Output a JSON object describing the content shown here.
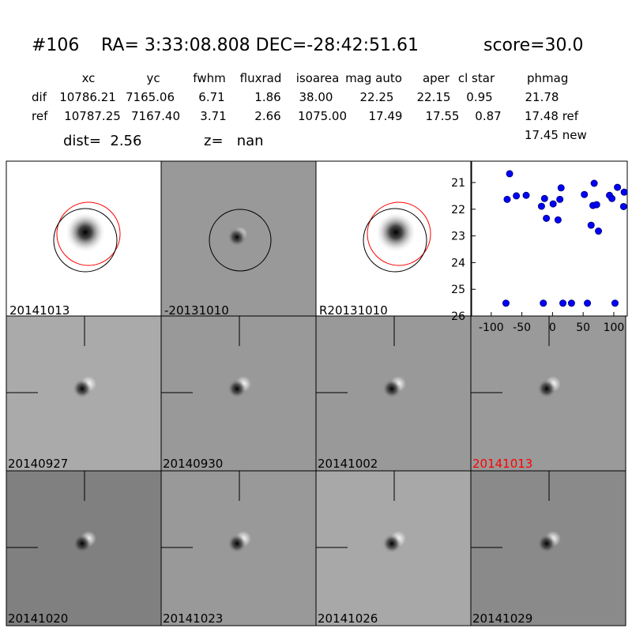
{
  "header": {
    "id": "#106",
    "coords": "RA= 3:33:08.808 DEC=-28:42:51.61",
    "score": "score=30.0"
  },
  "table": {
    "columns": [
      "xc",
      "yc",
      "fwhm",
      "fluxrad",
      "isoarea",
      "mag auto",
      "aper",
      "cl star",
      "phmag"
    ],
    "rows": [
      {
        "label": "dif",
        "values": [
          "10786.21",
          "7165.06",
          "6.71",
          "1.86",
          "38.00",
          "22.25",
          "22.15",
          "0.95",
          "21.78"
        ]
      },
      {
        "label": "ref",
        "values": [
          "10787.25",
          "7167.40",
          "3.71",
          "2.66",
          "1075.00",
          "17.49",
          "17.55",
          "0.87",
          "17.48 ref"
        ]
      }
    ],
    "extra": "17.45 new"
  },
  "dist": "dist=  2.56",
  "z": "z=   nan",
  "panels": [
    "20141013",
    "-20131010",
    "R20131010",
    "20140927",
    "20140930",
    "20141002",
    "20141013",
    "20141020",
    "20141023",
    "20141026",
    "20141029"
  ],
  "chart_data": {
    "type": "scatter",
    "color": "#0000ff",
    "x": [
      -70,
      -74,
      -59,
      -43,
      -18,
      -13,
      -10,
      1,
      9,
      12,
      14,
      52,
      63,
      66,
      68,
      72,
      75,
      93,
      97,
      106,
      116,
      117,
      -76,
      -15,
      17,
      31,
      57,
      102
    ],
    "y": [
      20.67,
      21.63,
      21.5,
      21.48,
      21.89,
      21.6,
      22.34,
      21.8,
      22.4,
      21.63,
      21.2,
      21.45,
      22.6,
      21.86,
      21.03,
      21.83,
      22.82,
      21.48,
      21.6,
      21.18,
      21.9,
      21.36,
      25.52,
      25.52,
      25.52,
      25.52,
      25.52,
      25.52
    ],
    "xlim": [
      -132,
      122
    ],
    "ylim": [
      26,
      20.2
    ],
    "xticks": [
      -100,
      -50,
      0,
      50,
      100
    ],
    "yticks": [
      21,
      22,
      23,
      24,
      25,
      26
    ]
  }
}
